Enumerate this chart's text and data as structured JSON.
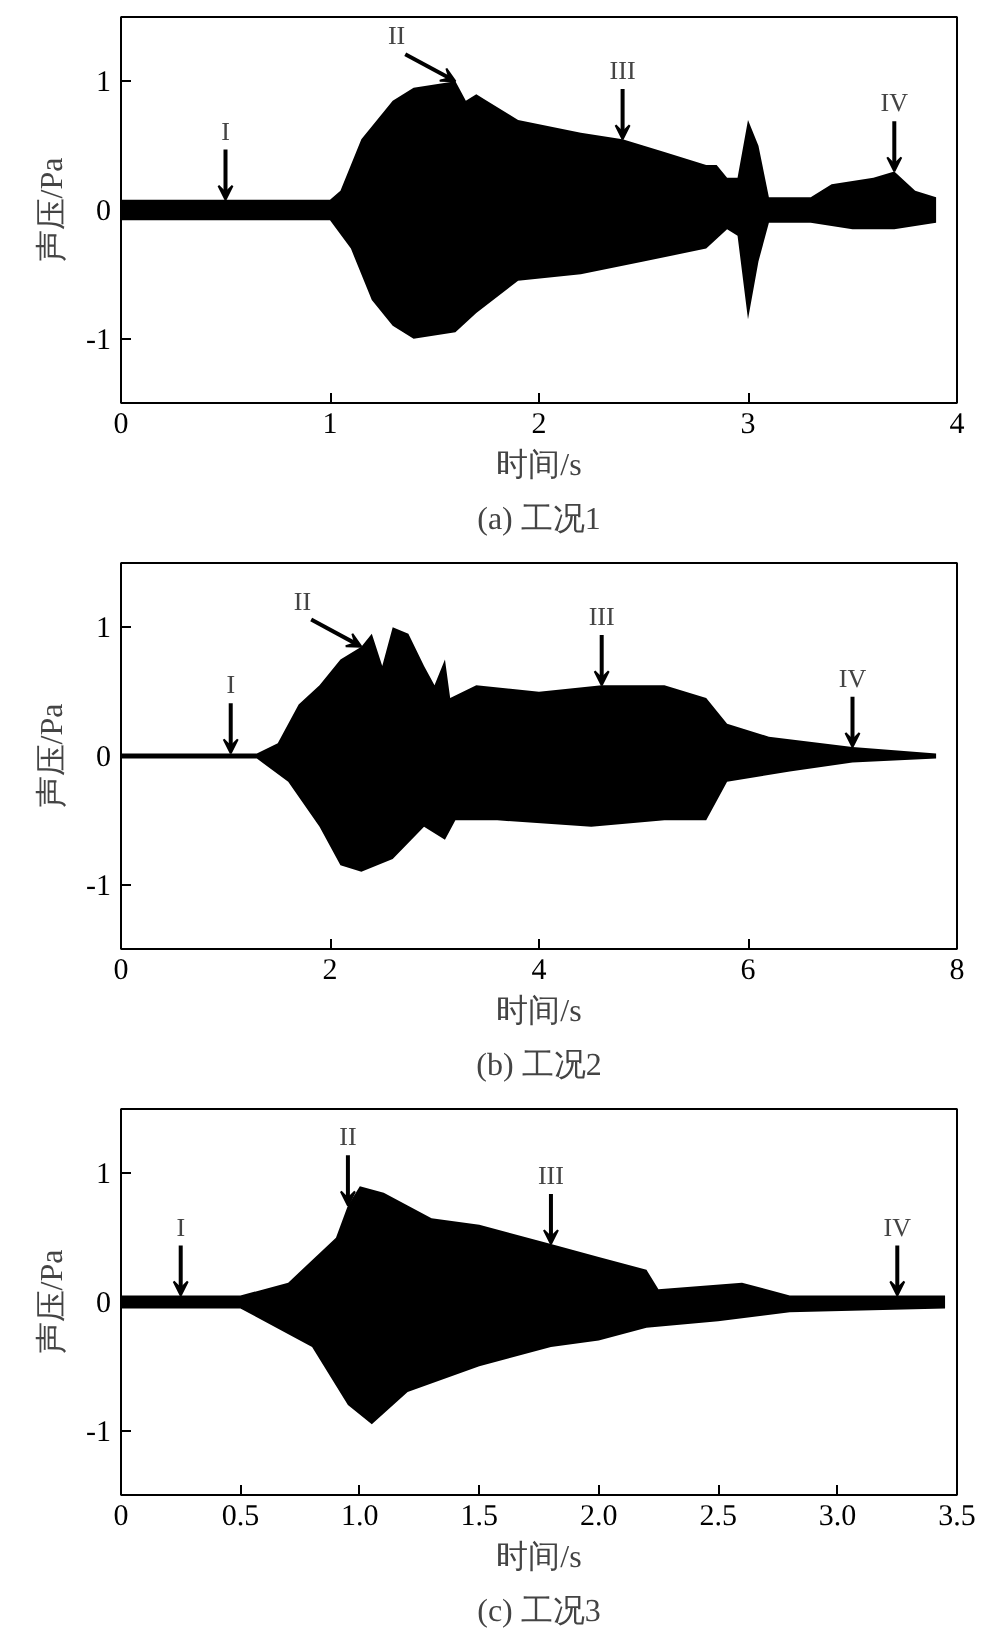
{
  "chart_data": [
    {
      "type": "area",
      "xlabel": "时间/s",
      "ylabel": "声压/Pa",
      "xlim": [
        0,
        4
      ],
      "ylim": [
        -1.5,
        1.5
      ],
      "xticks": [
        0,
        1,
        2,
        3,
        4
      ],
      "yticks": [
        -1,
        0,
        1
      ],
      "series": [
        {
          "color": "#000000",
          "x": [
            0,
            1.0,
            1.05,
            1.15,
            1.3,
            1.4,
            1.6,
            1.65,
            1.7,
            1.75,
            1.9,
            2.2,
            2.4,
            2.6,
            2.8,
            2.85,
            2.9,
            2.95,
            3.0,
            3.05,
            3.1,
            3.3,
            3.4,
            3.6,
            3.7,
            3.8,
            3.9
          ],
          "values": [
            0.08,
            0.08,
            0.15,
            0.55,
            0.85,
            0.95,
            1.0,
            0.85,
            0.9,
            0.85,
            0.7,
            0.6,
            0.55,
            0.45,
            0.35,
            0.35,
            0.25,
            0.25,
            0.7,
            0.5,
            0.1,
            0.1,
            0.2,
            0.25,
            0.3,
            0.15,
            0.1
          ]
        },
        {
          "color": "#000000",
          "x": [
            0,
            1.0,
            1.1,
            1.2,
            1.3,
            1.4,
            1.6,
            1.7,
            1.9,
            2.2,
            2.5,
            2.8,
            2.9,
            2.95,
            3.0,
            3.05,
            3.1,
            3.3,
            3.5,
            3.7,
            3.9
          ],
          "values": [
            -0.08,
            -0.08,
            -0.3,
            -0.7,
            -0.9,
            -1.0,
            -0.95,
            -0.8,
            -0.55,
            -0.5,
            -0.4,
            -0.3,
            -0.15,
            -0.2,
            -0.85,
            -0.4,
            -0.1,
            -0.1,
            -0.15,
            -0.15,
            -0.1
          ]
        }
      ],
      "annotations": [
        {
          "text": "I",
          "x": 0.5,
          "y": 0.08
        },
        {
          "text": "II",
          "x": 1.6,
          "y": 1.0
        },
        {
          "text": "III",
          "x": 2.4,
          "y": 0.55
        },
        {
          "text": "IV",
          "x": 3.7,
          "y": 0.3
        },
        "(a) 工况1"
      ]
    },
    {
      "type": "area",
      "xlabel": "时间/s",
      "ylabel": "声压/Pa",
      "xlim": [
        0,
        8
      ],
      "ylim": [
        -1.5,
        1.5
      ],
      "xticks": [
        0,
        2,
        4,
        6,
        8
      ],
      "yticks": [
        -1,
        0,
        1
      ],
      "series": [
        {
          "color": "#000000",
          "x": [
            0,
            1.3,
            1.5,
            1.7,
            1.9,
            2.1,
            2.3,
            2.4,
            2.5,
            2.6,
            2.75,
            2.9,
            3.0,
            3.1,
            3.15,
            3.4,
            4.0,
            4.6,
            5.2,
            5.6,
            5.8,
            6.2,
            7.0,
            7.8
          ],
          "values": [
            0.02,
            0.02,
            0.1,
            0.4,
            0.55,
            0.75,
            0.85,
            0.95,
            0.7,
            1.0,
            0.95,
            0.7,
            0.55,
            0.75,
            0.45,
            0.55,
            0.5,
            0.55,
            0.55,
            0.45,
            0.25,
            0.15,
            0.07,
            0.02
          ]
        },
        {
          "color": "#000000",
          "x": [
            0,
            1.3,
            1.6,
            1.9,
            2.1,
            2.3,
            2.6,
            2.9,
            3.1,
            3.2,
            3.6,
            4.5,
            5.2,
            5.6,
            5.8,
            6.4,
            7.0,
            7.8
          ],
          "values": [
            -0.02,
            -0.02,
            -0.2,
            -0.55,
            -0.85,
            -0.9,
            -0.8,
            -0.55,
            -0.65,
            -0.5,
            -0.5,
            -0.55,
            -0.5,
            -0.5,
            -0.2,
            -0.12,
            -0.05,
            -0.02
          ]
        }
      ],
      "annotations": [
        {
          "text": "I",
          "x": 1.05,
          "y": 0.02
        },
        {
          "text": "II",
          "x": 2.3,
          "y": 0.85
        },
        {
          "text": "III",
          "x": 4.6,
          "y": 0.55
        },
        {
          "text": "IV",
          "x": 7.0,
          "y": 0.07
        },
        "(b) 工况2"
      ]
    },
    {
      "type": "area",
      "xlabel": "时间/s",
      "ylabel": "声压/Pa",
      "xlim": [
        0,
        3.5
      ],
      "ylim": [
        -1.5,
        1.5
      ],
      "xticks": [
        0,
        {
          "value": 0.5,
          "label": "0.5"
        },
        {
          "value": 1,
          "label": "1.0"
        },
        {
          "value": 1.5,
          "label": "1.5"
        },
        {
          "value": 2,
          "label": "2.0"
        },
        {
          "value": 2.5,
          "label": "2.5"
        },
        {
          "value": 3,
          "label": "3.0"
        },
        {
          "value": 3.5,
          "label": "3.5"
        }
      ],
      "yticks": [
        -1,
        0,
        1
      ],
      "series": [
        {
          "color": "#000000",
          "x": [
            0,
            0.5,
            0.7,
            0.9,
            0.95,
            1.0,
            1.1,
            1.3,
            1.5,
            1.8,
            2.0,
            2.2,
            2.25,
            2.6,
            2.8,
            3.45
          ],
          "values": [
            0.05,
            0.05,
            0.15,
            0.5,
            0.75,
            0.9,
            0.85,
            0.65,
            0.6,
            0.45,
            0.35,
            0.25,
            0.1,
            0.15,
            0.05,
            0.05
          ]
        },
        {
          "color": "#000000",
          "x": [
            0,
            0.5,
            0.8,
            0.95,
            1.05,
            1.2,
            1.5,
            1.8,
            2.0,
            2.2,
            2.5,
            2.8,
            3.45
          ],
          "values": [
            -0.05,
            -0.05,
            -0.35,
            -0.8,
            -0.95,
            -0.7,
            -0.5,
            -0.35,
            -0.3,
            -0.2,
            -0.15,
            -0.08,
            -0.05
          ]
        }
      ],
      "annotations": [
        {
          "text": "I",
          "x": 0.25,
          "y": 0.05
        },
        {
          "text": "II",
          "x": 0.95,
          "y": 0.75
        },
        {
          "text": "III",
          "x": 1.8,
          "y": 0.45
        },
        {
          "text": "IV",
          "x": 3.25,
          "y": 0.05
        },
        "(c) 工况3"
      ]
    }
  ]
}
